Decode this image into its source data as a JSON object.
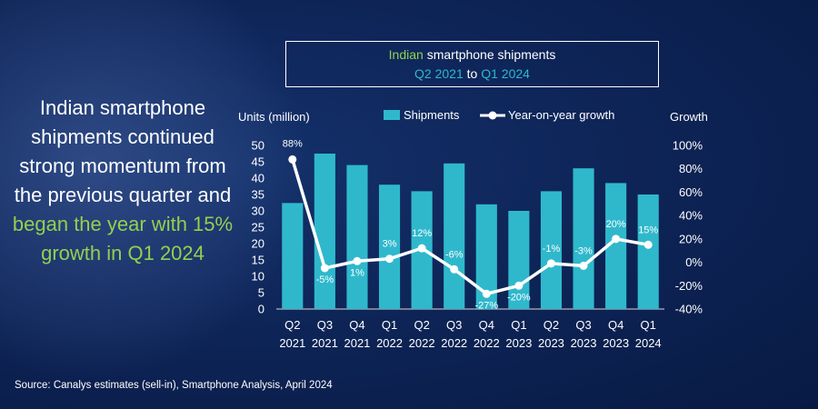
{
  "title": {
    "line1_highlight": "Indian",
    "line1_rest": " smartphone shipments",
    "line2_start": "Q2 2021",
    "line2_mid": " to ",
    "line2_end": "Q1 2024"
  },
  "side_text": {
    "part1": "Indian smartphone shipments continued strong momentum from the previous quarter and ",
    "highlight": "began the year with 15% growth in",
    "part2": " Q1 2024"
  },
  "source": "Source: Canalys estimates (sell-in), Smartphone Analysis, April 2024",
  "colors": {
    "bar": "#2fb8cc",
    "line": "#ffffff",
    "highlight_green": "#92d050",
    "highlight_teal": "#2fb8cc"
  },
  "chart_data": {
    "type": "bar",
    "left_axis_title": "Units (million)",
    "right_axis_title": "Growth",
    "legend": {
      "shipments": "Shipments",
      "growth": "Year-on-year growth"
    },
    "categories": [
      {
        "q": "Q2",
        "y": "2021"
      },
      {
        "q": "Q3",
        "y": "2021"
      },
      {
        "q": "Q4",
        "y": "2021"
      },
      {
        "q": "Q1",
        "y": "2022"
      },
      {
        "q": "Q2",
        "y": "2022"
      },
      {
        "q": "Q3",
        "y": "2022"
      },
      {
        "q": "Q4",
        "y": "2022"
      },
      {
        "q": "Q1",
        "y": "2023"
      },
      {
        "q": "Q2",
        "y": "2023"
      },
      {
        "q": "Q3",
        "y": "2023"
      },
      {
        "q": "Q4",
        "y": "2023"
      },
      {
        "q": "Q1",
        "y": "2024"
      }
    ],
    "shipments": [
      32.4,
      47.5,
      44.0,
      38.0,
      36.0,
      44.5,
      32.0,
      30.0,
      36.0,
      43.0,
      38.5,
      35.0
    ],
    "growth": [
      88,
      -5,
      1,
      3,
      12,
      -6,
      -27,
      -20,
      -1,
      -3,
      20,
      15
    ],
    "growth_labels": [
      "88%",
      "-5%",
      "1%",
      "3%",
      "12%",
      "-6%",
      "-27%",
      "-20%",
      "-1%",
      "-3%",
      "20%",
      "15%"
    ],
    "left_ylim": [
      0,
      50
    ],
    "left_ticks": [
      "0",
      "5",
      "10",
      "15",
      "20",
      "25",
      "30",
      "35",
      "40",
      "45",
      "50"
    ],
    "right_ylim": [
      -40,
      100
    ],
    "right_ticks": [
      "-40%",
      "-20%",
      "0%",
      "20%",
      "40%",
      "60%",
      "80%",
      "100%"
    ]
  }
}
